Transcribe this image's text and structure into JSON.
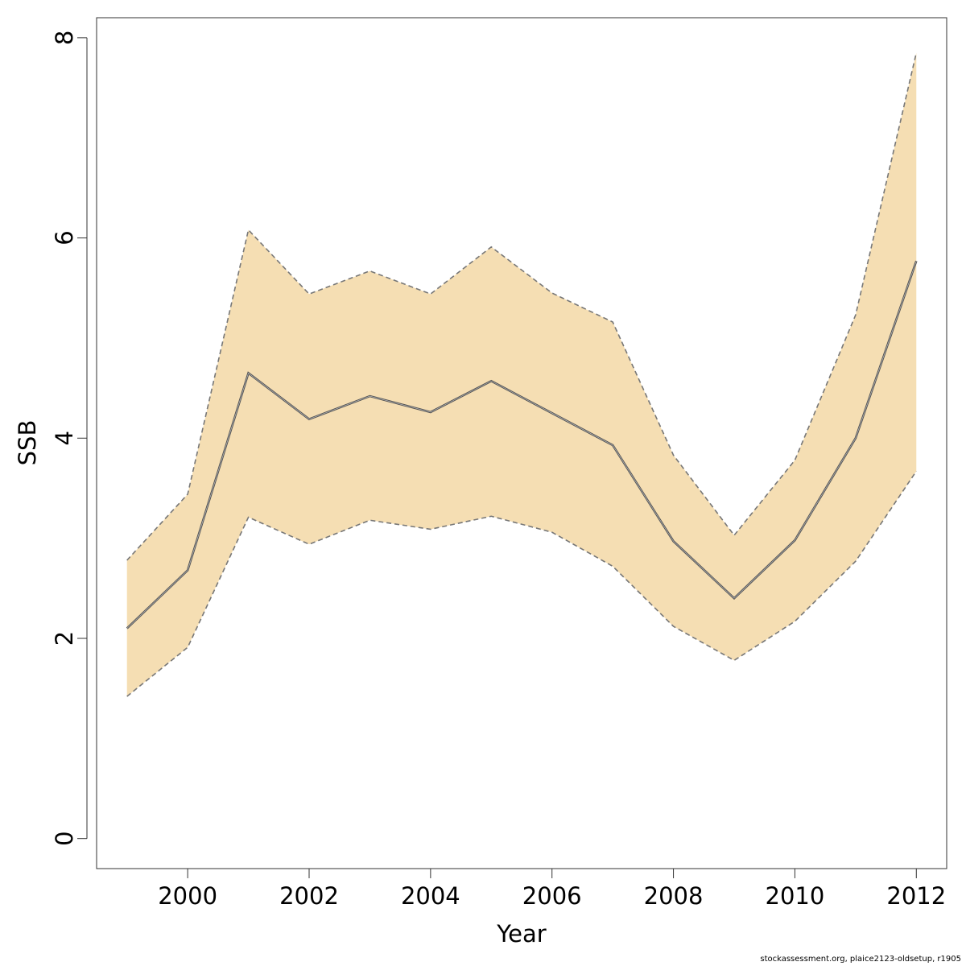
{
  "chart_data": {
    "type": "area",
    "xlabel": "Year",
    "ylabel": "SSB",
    "xlim": [
      1998.5,
      2012.5
    ],
    "ylim": [
      -0.3,
      8.2
    ],
    "x_ticks": [
      2000,
      2002,
      2004,
      2006,
      2008,
      2010,
      2012
    ],
    "y_ticks": [
      0,
      2,
      4,
      6,
      8
    ],
    "grid": false,
    "x": [
      1999,
      2000,
      2001,
      2002,
      2003,
      2004,
      2005,
      2006,
      2007,
      2008,
      2009,
      2010,
      2011,
      2012
    ],
    "series": [
      {
        "values": [
          2.1,
          2.68,
          4.65,
          4.19,
          4.42,
          4.26,
          4.57,
          4.25,
          3.93,
          2.97,
          2.4,
          2.98,
          4.0,
          5.77
        ]
      },
      {
        "values": [
          2.78,
          3.44,
          6.08,
          5.44,
          5.67,
          5.44,
          5.91,
          5.45,
          5.16,
          3.83,
          3.03,
          3.78,
          5.23,
          7.85
        ]
      },
      {
        "values": [
          1.42,
          1.91,
          3.21,
          2.94,
          3.18,
          3.09,
          3.22,
          3.06,
          2.72,
          2.12,
          1.78,
          2.17,
          2.77,
          3.67
        ]
      }
    ],
    "colors": {
      "band": "#f5deb3",
      "line": "#555555",
      "bound": "#777777"
    }
  },
  "footer": {
    "text": "stockassessment.org, plaice2123-oldsetup, r1905"
  }
}
